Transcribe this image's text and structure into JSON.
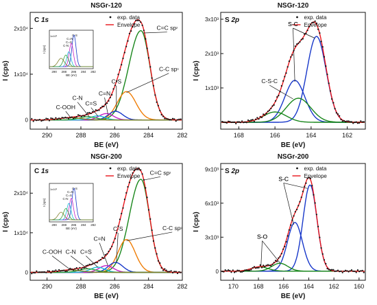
{
  "colors": {
    "data": "#111111",
    "envelope": "#e8141a",
    "frame": "#111111",
    "fit_main": "#18861b",
    "fit_sp3": "#ef7d06",
    "fit_blue": "#1737c9",
    "fit_small": [
      "#2a45d6",
      "#c51fc5",
      "#18b9d6",
      "#2f9e36",
      "#7f7f2a"
    ]
  },
  "chart_data": [
    {
      "type": "line",
      "panel": "C1s-120",
      "title": "NSGr-120",
      "corner_label": "C 1s",
      "xlabel": "BE (eV)",
      "ylabel": "I (cps)",
      "xlim": [
        291,
        282
      ],
      "ylim": [
        -2000,
        23500
      ],
      "xticks": [
        290,
        288,
        286,
        284,
        282
      ],
      "yticks": [
        {
          "v": 0,
          "t": "0"
        },
        {
          "v": 10000,
          "t": "1x10⁴"
        },
        {
          "v": 20000,
          "t": "2x10⁴"
        }
      ],
      "legend": [
        "exp. data",
        "Envelope"
      ],
      "components": [
        {
          "center": 284.45,
          "height": 19500,
          "fwhm": 1.25,
          "shape": "asym",
          "color": "fit_main"
        },
        {
          "center": 285.3,
          "height": 6200,
          "fwhm": 1.3,
          "color": "fit_sp3"
        },
        {
          "center": 285.95,
          "height": 1900,
          "fwhm": 1.0,
          "color": "fit_blue"
        },
        {
          "center": 286.5,
          "height": 1400,
          "fwhm": 1.0,
          "color": "fit_small_1"
        },
        {
          "center": 287.0,
          "height": 900,
          "fwhm": 1.0,
          "color": "fit_small_2"
        },
        {
          "center": 287.6,
          "height": 700,
          "fwhm": 1.2,
          "color": "fit_small_3"
        },
        {
          "center": 288.6,
          "height": 500,
          "fwhm": 1.5,
          "color": "fit_small_4"
        }
      ],
      "annotations": [
        {
          "text": "C=C sp²",
          "x": 282.9,
          "y": 19500,
          "to_x": 284.3,
          "to_y": 19000
        },
        {
          "text": "C-C sp³",
          "x": 282.8,
          "y": 10500,
          "to_x": 285.3,
          "to_y": 6000
        },
        {
          "text": "C-S",
          "x": 285.9,
          "y": 7800,
          "to_x": 285.9,
          "to_y": 1900
        },
        {
          "text": "C=N",
          "x": 286.6,
          "y": 5200,
          "to_x": 286.4,
          "to_y": 1300
        },
        {
          "text": "C-N",
          "x": 288.2,
          "y": 4200,
          "to_x": 287.5,
          "to_y": 700
        },
        {
          "text": "C=S",
          "x": 287.4,
          "y": 3000,
          "to_x": 287.0,
          "to_y": 900
        },
        {
          "text": "C-OOH",
          "x": 288.9,
          "y": 2200,
          "to_x": 288.6,
          "to_y": 500
        }
      ],
      "inset": {
        "xlim": [
          291,
          282
        ],
        "xticks": [
          290,
          288,
          286,
          284,
          282
        ],
        "xticklabels": [
          "290",
          "288",
          "286",
          "284",
          "282"
        ],
        "xlabel": "BE (eV)",
        "ylabel": "I (cps)",
        "ytick_label": "1x10³",
        "labels": [
          {
            "text": "C-S",
            "x": 285.8
          },
          {
            "text": "C=N",
            "x": 286.8
          },
          {
            "text": "C=S",
            "x": 287.0
          },
          {
            "text": "C-N",
            "x": 287.6
          }
        ]
      }
    },
    {
      "type": "line",
      "panel": "S2p-120",
      "title": "NSGr-120",
      "corner_label": "S 2p",
      "xlabel": "BE (eV)",
      "ylabel": "I (cps)",
      "xlim": [
        169,
        161
      ],
      "ylim": [
        -200,
        3200
      ],
      "xticks": [
        168,
        166,
        164,
        162
      ],
      "yticks": [
        {
          "v": 1000,
          "t": "1x10³"
        },
        {
          "v": 2000,
          "t": "2x10³"
        },
        {
          "v": 3000,
          "t": "3x10³"
        }
      ],
      "legend": [
        "exp. data",
        "Envelope"
      ],
      "components": [
        {
          "center": 163.7,
          "height": 2500,
          "fwhm": 1.25,
          "color": "fit_blue"
        },
        {
          "center": 164.9,
          "height": 1220,
          "fwhm": 1.3,
          "color": "fit_blue"
        },
        {
          "center": 164.7,
          "height": 700,
          "fwhm": 1.6,
          "color": "fit_main"
        },
        {
          "center": 166.0,
          "height": 300,
          "fwhm": 1.5,
          "color": "fit_main"
        }
      ],
      "annotations": [
        {
          "text": "S-C",
          "x": 165.0,
          "y": 2780,
          "to_x": 164.9,
          "to_y": 1180
        },
        {
          "text": "S-C",
          "x": 165.0,
          "y": 2780,
          "to_x": 163.8,
          "to_y": 2450
        },
        {
          "text": "C-S-C",
          "x": 166.3,
          "y": 1120,
          "to_x": 165.0,
          "to_y": 680
        }
      ]
    },
    {
      "type": "line",
      "panel": "C1s-200",
      "title": "NSGr-200",
      "corner_label": "C 1s",
      "xlabel": "BE (eV)",
      "ylabel": "I (cps)",
      "xlim": [
        291,
        282
      ],
      "ylim": [
        -2000,
        27500
      ],
      "xticks": [
        290,
        288,
        286,
        284,
        282
      ],
      "yticks": [
        {
          "v": 0,
          "t": "0"
        },
        {
          "v": 10000,
          "t": "1x10⁴"
        },
        {
          "v": 20000,
          "t": "2x10⁴"
        }
      ],
      "legend": [
        "exp. data",
        "Envelope"
      ],
      "components": [
        {
          "center": 284.45,
          "height": 23500,
          "fwhm": 1.2,
          "shape": "asym",
          "color": "fit_main"
        },
        {
          "center": 285.3,
          "height": 8300,
          "fwhm": 1.2,
          "color": "fit_sp3"
        },
        {
          "center": 285.95,
          "height": 2500,
          "fwhm": 1.0,
          "color": "fit_blue"
        },
        {
          "center": 286.5,
          "height": 1700,
          "fwhm": 1.0,
          "color": "fit_small_1"
        },
        {
          "center": 287.0,
          "height": 1300,
          "fwhm": 1.0,
          "color": "fit_small_2"
        },
        {
          "center": 287.6,
          "height": 900,
          "fwhm": 1.2,
          "color": "fit_small_3"
        },
        {
          "center": 288.6,
          "height": 600,
          "fwhm": 1.5,
          "color": "fit_small_4"
        }
      ],
      "annotations": [
        {
          "text": "C=C sp²",
          "x": 283.3,
          "y": 24500,
          "to_x": 284.3,
          "to_y": 23300
        },
        {
          "text": "C-C sp³",
          "x": 282.6,
          "y": 10500,
          "to_x": 285.3,
          "to_y": 8000
        },
        {
          "text": "C-S",
          "x": 285.8,
          "y": 10300,
          "to_x": 285.9,
          "to_y": 2500
        },
        {
          "text": "C=N",
          "x": 286.9,
          "y": 7800,
          "to_x": 286.4,
          "to_y": 1700
        },
        {
          "text": "C=S",
          "x": 287.7,
          "y": 4500,
          "to_x": 287.0,
          "to_y": 1300
        },
        {
          "text": "C-N",
          "x": 288.6,
          "y": 4500,
          "to_x": 287.6,
          "to_y": 900
        },
        {
          "text": "C-OOH",
          "x": 289.7,
          "y": 4500,
          "to_x": 288.6,
          "to_y": 600
        }
      ],
      "inset": {
        "xlim": [
          291,
          282
        ],
        "xticks": [
          290,
          288,
          286,
          284,
          282
        ],
        "xticklabels": [
          "290",
          "288",
          "286",
          "284",
          "282"
        ],
        "xlabel": "BE (eV)",
        "ylabel": "I (cps)",
        "ytick_label": "1x10³",
        "labels": [
          {
            "text": "C-S",
            "x": 285.8
          },
          {
            "text": "C=N",
            "x": 286.7
          },
          {
            "text": "C=S",
            "x": 287.0
          },
          {
            "text": "C-N",
            "x": 287.7
          }
        ]
      }
    },
    {
      "type": "line",
      "panel": "S2p-200",
      "title": "NSGr-200",
      "corner_label": "S 2p",
      "xlabel": "BE (eV)",
      "ylabel": "I (cps)",
      "xlim": [
        171,
        159.5
      ],
      "ylim": [
        -800,
        9500
      ],
      "xticks": [
        170,
        168,
        166,
        164,
        162,
        160
      ],
      "yticks": [
        {
          "v": 0,
          "t": "0"
        },
        {
          "v": 3000,
          "t": "3x10³"
        },
        {
          "v": 6000,
          "t": "6x10³"
        },
        {
          "v": 9000,
          "t": "9x10³"
        }
      ],
      "legend": [
        "exp. data",
        "Envelope"
      ],
      "components": [
        {
          "center": 163.9,
          "height": 7600,
          "fwhm": 1.3,
          "color": "fit_blue"
        },
        {
          "center": 165.1,
          "height": 4300,
          "fwhm": 1.4,
          "color": "fit_blue"
        },
        {
          "center": 166.3,
          "height": 700,
          "fwhm": 1.5,
          "color": "fit_main"
        },
        {
          "center": 167.9,
          "height": 380,
          "fwhm": 1.6,
          "color": "fit_main"
        }
      ],
      "annotations": [
        {
          "text": "S-C",
          "x": 166.0,
          "y": 7900,
          "to_x": 165.2,
          "to_y": 4100
        },
        {
          "text": "S-C",
          "x": 166.0,
          "y": 7900,
          "to_x": 164.1,
          "to_y": 7300
        },
        {
          "text": "S-O",
          "x": 167.7,
          "y": 2800,
          "to_x": 167.8,
          "to_y": 420
        },
        {
          "text": "S-O",
          "x": 167.7,
          "y": 2800,
          "to_x": 166.3,
          "to_y": 750
        }
      ]
    }
  ]
}
